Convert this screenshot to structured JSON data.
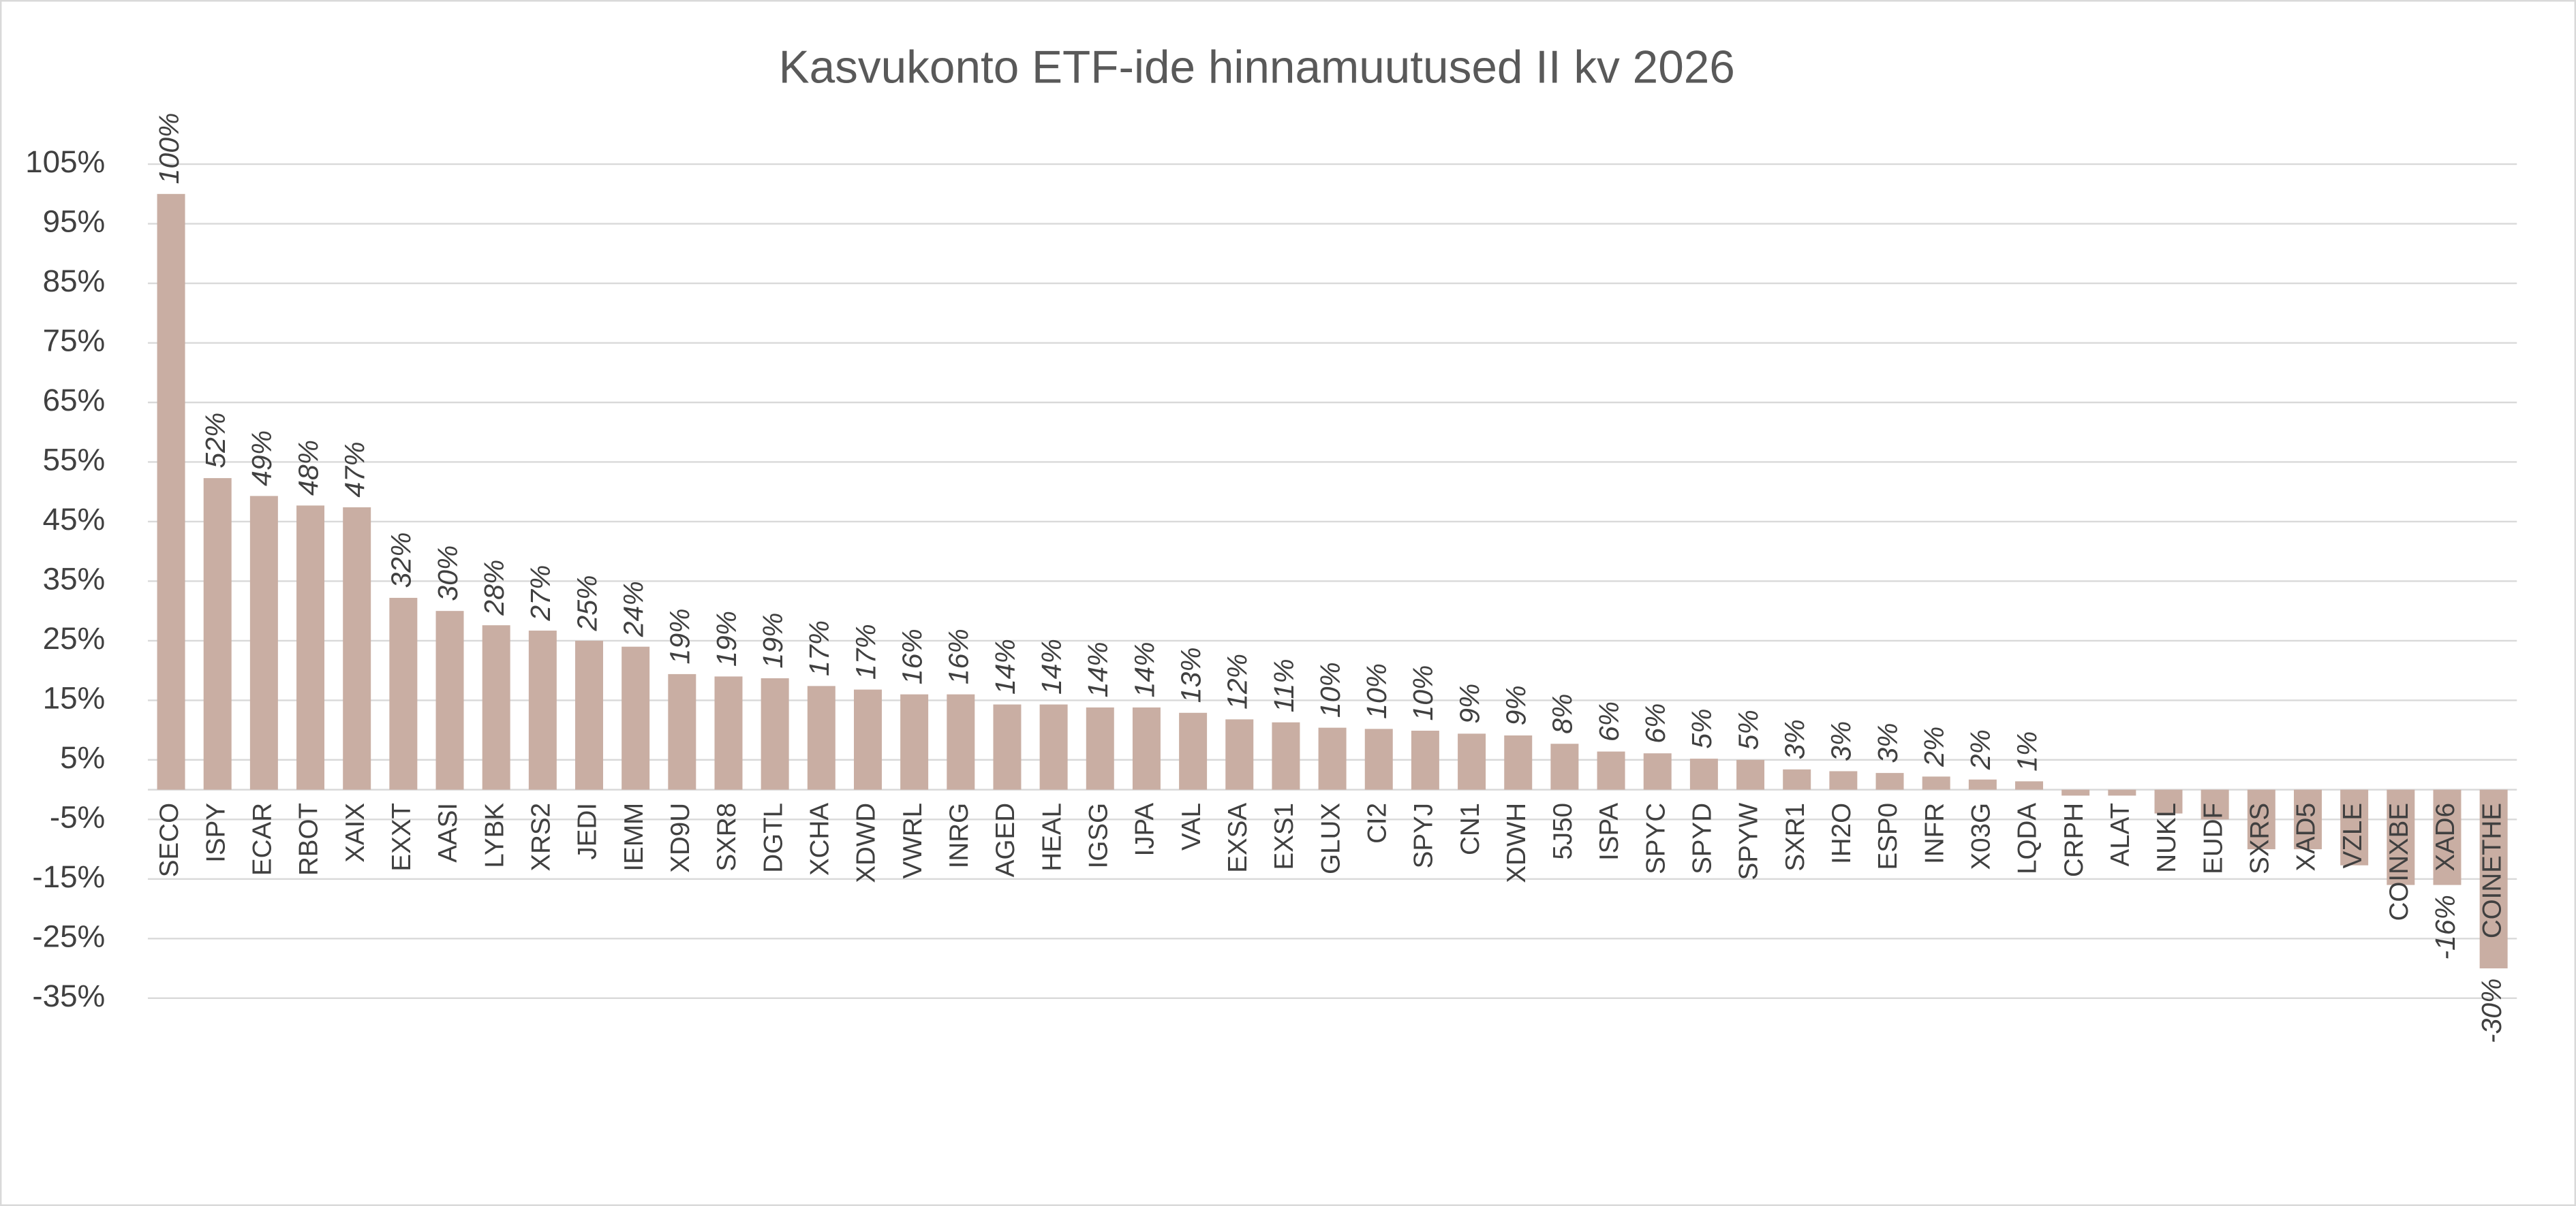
{
  "chart_data": {
    "type": "bar",
    "title": "Kasvukonto ETF-ide hinnamuutused II kv 2026",
    "categories": [
      "SECO",
      "ISPY",
      "ECAR",
      "RBOT",
      "XAIX",
      "EXXT",
      "AASI",
      "LYBK",
      "XRS2",
      "JEDI",
      "IEMM",
      "XD9U",
      "SXR8",
      "DGTL",
      "XCHA",
      "XDWD",
      "VWRL",
      "INRG",
      "AGED",
      "HEAL",
      "IGSG",
      "IJPA",
      "VAL",
      "EXSA",
      "EXS1",
      "GLUX",
      "CI2",
      "SPYJ",
      "CN1",
      "XDWH",
      "5J50",
      "ISPA",
      "SPYC",
      "SPYD",
      "SPYW",
      "SXR1",
      "IH2O",
      "ESP0",
      "INFR",
      "X03G",
      "LQDA",
      "CRPH",
      "ALAT",
      "NUKL",
      "EUDF",
      "SXRS",
      "XAD5",
      "VZLE",
      "COINXBE",
      "XAD6",
      "COINETHE"
    ],
    "values": [
      100,
      52.3,
      49.3,
      47.7,
      47.4,
      32.2,
      30,
      27.6,
      26.7,
      25,
      24,
      19.4,
      19,
      18.7,
      17.4,
      16.8,
      16,
      16,
      14.3,
      14.3,
      13.8,
      13.8,
      12.9,
      11.8,
      11.3,
      10.4,
      10.2,
      9.9,
      9.4,
      9.1,
      7.7,
      6.4,
      6.1,
      5.2,
      5,
      3.4,
      3.1,
      2.8,
      2.2,
      1.7,
      1.4,
      -1,
      -1,
      -4,
      -5,
      -10,
      -10,
      -12.7,
      -16,
      -16,
      -30
    ],
    "value_labels": [
      "100%",
      "52%",
      "49%",
      "48%",
      "47%",
      "32%",
      "30%",
      "28%",
      "27%",
      "25%",
      "24%",
      "19%",
      "19%",
      "19%",
      "17%",
      "17%",
      "16%",
      "16%",
      "14%",
      "14%",
      "14%",
      "14%",
      "13%",
      "12%",
      "11%",
      "10%",
      "10%",
      "10%",
      "9%",
      "9%",
      "8%",
      "6%",
      "6%",
      "5%",
      "5%",
      "3%",
      "3%",
      "3%",
      "2%",
      "2%",
      "1%",
      null,
      null,
      null,
      null,
      null,
      null,
      null,
      null,
      "-16%",
      "-30%"
    ],
    "color": "#c9aea3",
    "ylim": [
      -35,
      105
    ],
    "yticks": [
      {
        "value": 105,
        "label": "105%"
      },
      {
        "value": 95,
        "label": "95%"
      },
      {
        "value": 85,
        "label": "85%"
      },
      {
        "value": 75,
        "label": "75%"
      },
      {
        "value": 65,
        "label": "65%"
      },
      {
        "value": 55,
        "label": "55%"
      },
      {
        "value": 45,
        "label": "45%"
      },
      {
        "value": 35,
        "label": "35%"
      },
      {
        "value": 25,
        "label": "25%"
      },
      {
        "value": 15,
        "label": "15%"
      },
      {
        "value": 5,
        "label": "5%"
      },
      {
        "value": -5,
        "label": "-5%"
      },
      {
        "value": -15,
        "label": "-15%"
      },
      {
        "value": -25,
        "label": "-25%"
      },
      {
        "value": -35,
        "label": "-35%"
      }
    ],
    "grid": true
  }
}
